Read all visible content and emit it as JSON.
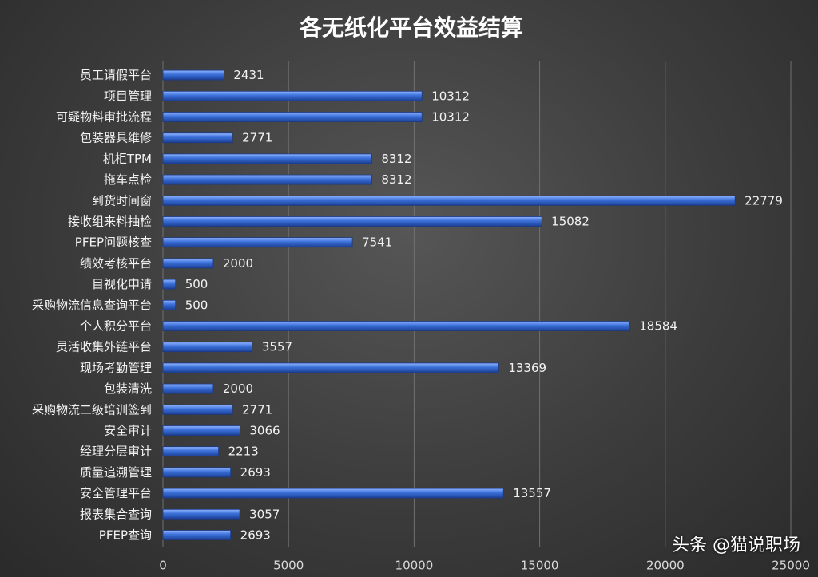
{
  "chart_data": {
    "type": "bar",
    "orientation": "horizontal",
    "title": "各无纸化平台效益结算",
    "categories": [
      "员工请假平台",
      "项目管理",
      "可疑物料审批流程",
      "包装器具维修",
      "机柜TPM",
      "拖车点检",
      "到货时间窗",
      "接收组来料抽检",
      "PFEP问题核查",
      "绩效考核平台",
      "目视化申请",
      "采购物流信息查询平台",
      "个人积分平台",
      "灵活收集外链平台",
      "现场考勤管理",
      "包装清洗",
      "采购物流二级培训签到",
      "安全审计",
      "经理分层审计",
      "质量追溯管理",
      "安全管理平台",
      "报表集合查询",
      "PFEP查询"
    ],
    "values": [
      2431,
      10312,
      10312,
      2771,
      8312,
      8312,
      22779,
      15082,
      7541,
      2000,
      500,
      500,
      18584,
      3557,
      13369,
      2000,
      2771,
      3066,
      2213,
      2693,
      13557,
      3057,
      2693
    ],
    "x_ticks": [
      "0",
      "5000",
      "10000",
      "15000",
      "20000",
      "25000"
    ],
    "xlim": [
      0,
      25000
    ],
    "grid": true,
    "bar_color": "#3a6fd8"
  },
  "watermark": "头条 @猫说职场"
}
